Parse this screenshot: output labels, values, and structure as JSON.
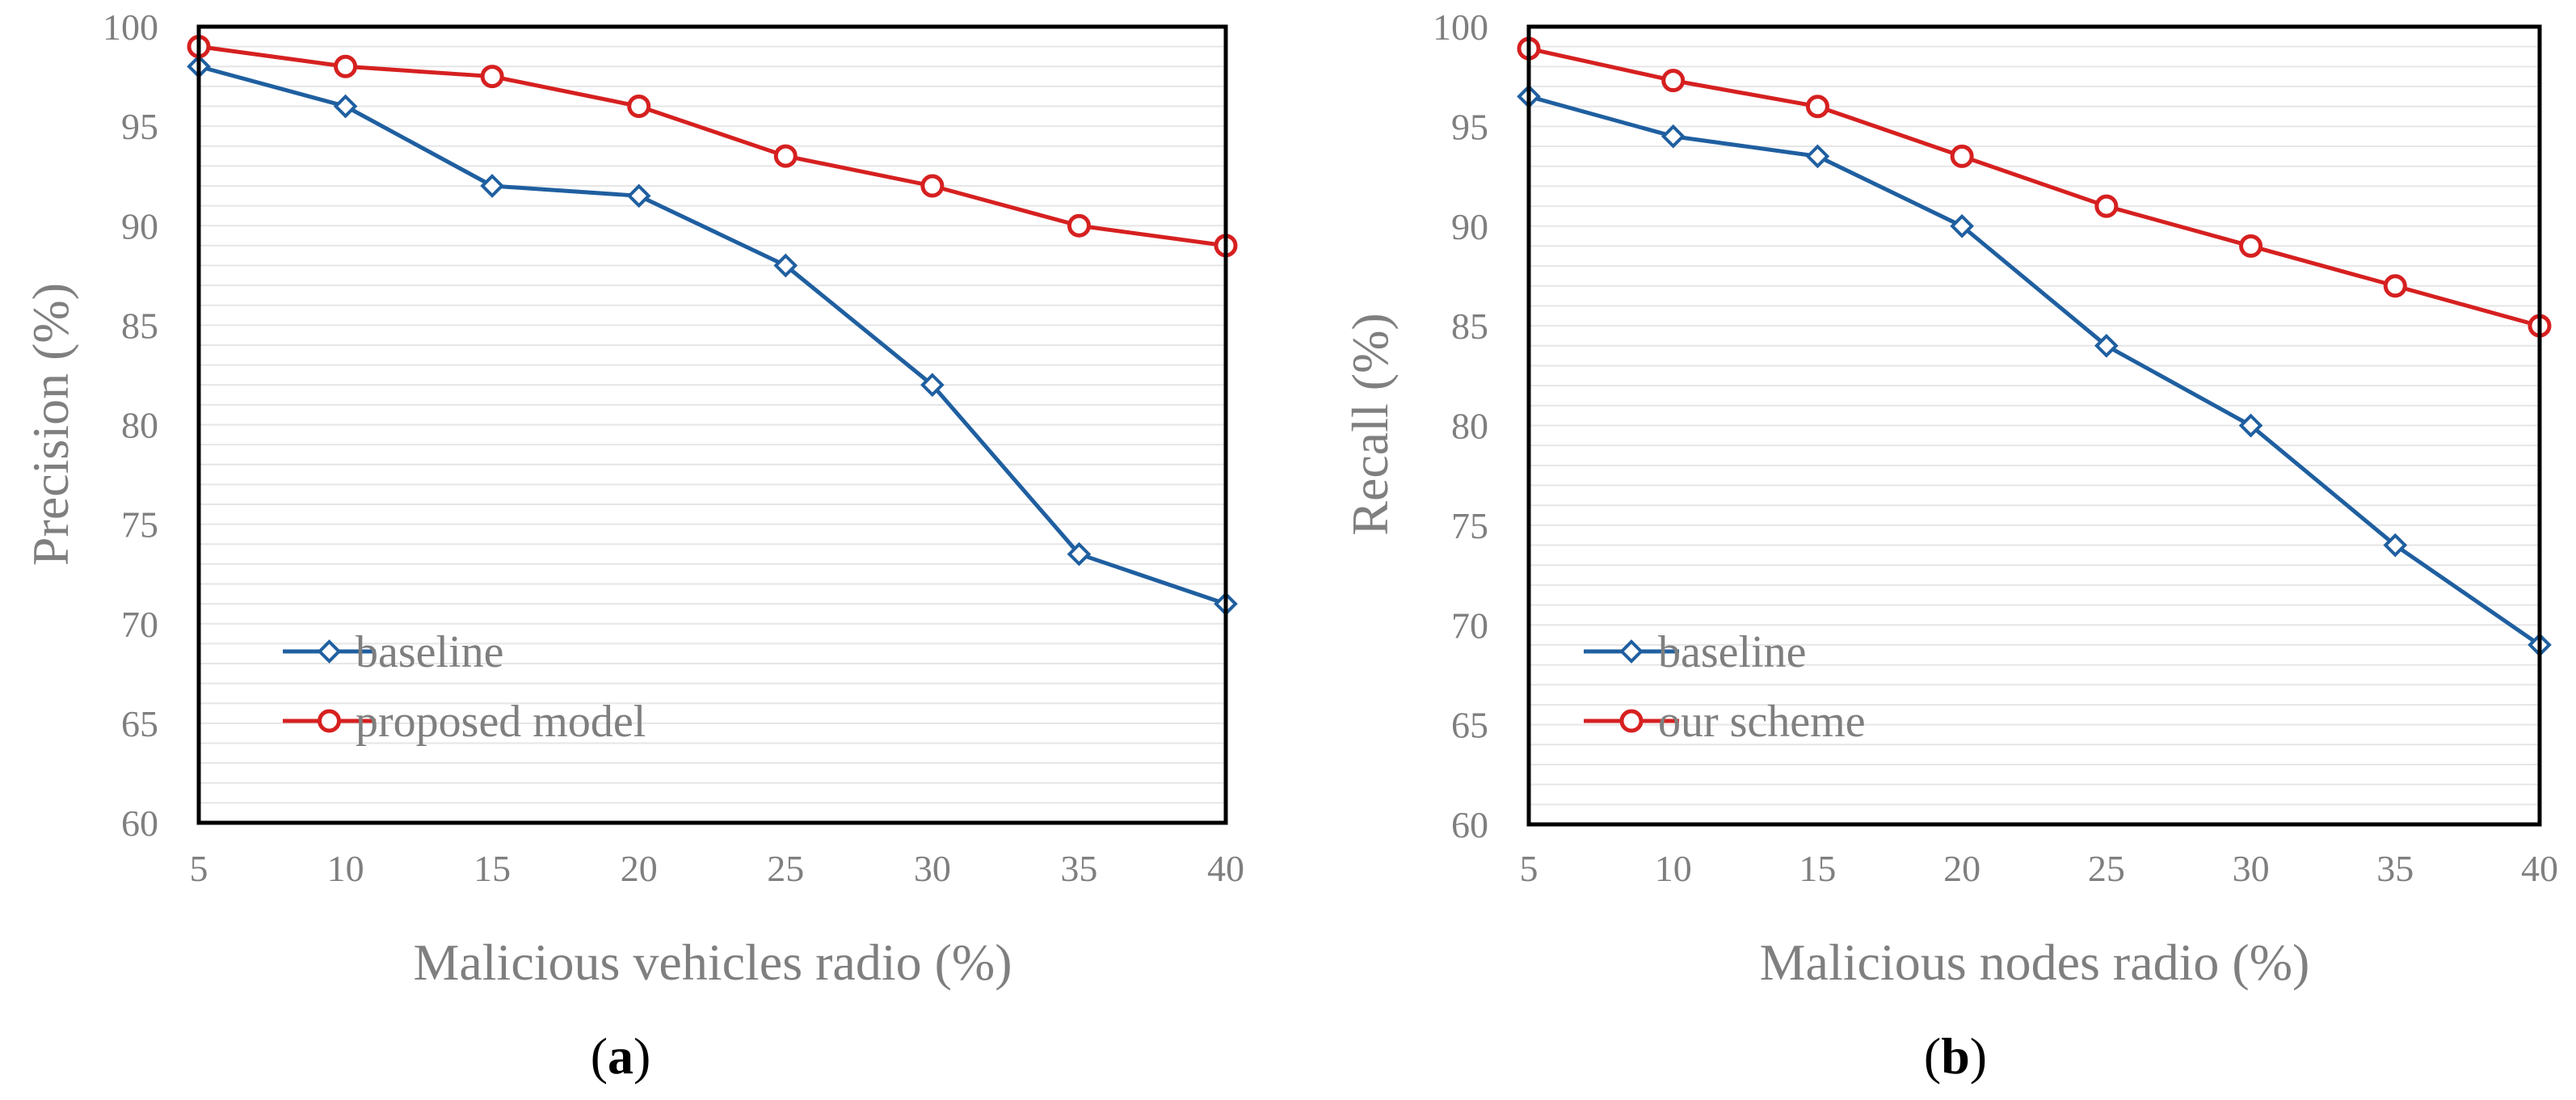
{
  "chart_data": [
    {
      "type": "line",
      "panel": "a",
      "title": "",
      "xlabel": "Malicious vehicles radio (%)",
      "ylabel": "Precision (%)",
      "categories": [
        5,
        10,
        15,
        20,
        25,
        30,
        35,
        40
      ],
      "ylim": [
        60,
        100
      ],
      "yticks": [
        60,
        65,
        70,
        75,
        80,
        85,
        90,
        95,
        100
      ],
      "grid": "horizontal minor lines",
      "legend_position": "bottom-left",
      "series": [
        {
          "name": "baseline",
          "color": "#1f5fa0",
          "marker": "diamond",
          "values": [
            98,
            96,
            92,
            91.5,
            88,
            82,
            73.5,
            71
          ]
        },
        {
          "name": "proposed model",
          "color": "#d62020",
          "marker": "circle",
          "values": [
            99,
            98,
            97.5,
            96,
            93.5,
            92,
            90,
            89
          ]
        }
      ]
    },
    {
      "type": "line",
      "panel": "b",
      "title": "",
      "xlabel": "Malicious nodes radio (%)",
      "ylabel": "Recall (%)",
      "categories": [
        5,
        10,
        15,
        20,
        25,
        30,
        35,
        40
      ],
      "ylim": [
        60,
        100
      ],
      "yticks": [
        60,
        65,
        70,
        75,
        80,
        85,
        90,
        95,
        100
      ],
      "grid": "horizontal minor lines",
      "legend_position": "bottom-left",
      "series": [
        {
          "name": "baseline",
          "color": "#1f5fa0",
          "marker": "diamond",
          "values": [
            96.5,
            94.5,
            93.5,
            90,
            84,
            80,
            74,
            69
          ]
        },
        {
          "name": "our scheme",
          "color": "#d62020",
          "marker": "circle",
          "values": [
            98.9,
            97.3,
            96,
            93.5,
            91,
            89,
            87,
            85
          ]
        }
      ]
    }
  ],
  "panel_labels": [
    "a",
    "b"
  ]
}
